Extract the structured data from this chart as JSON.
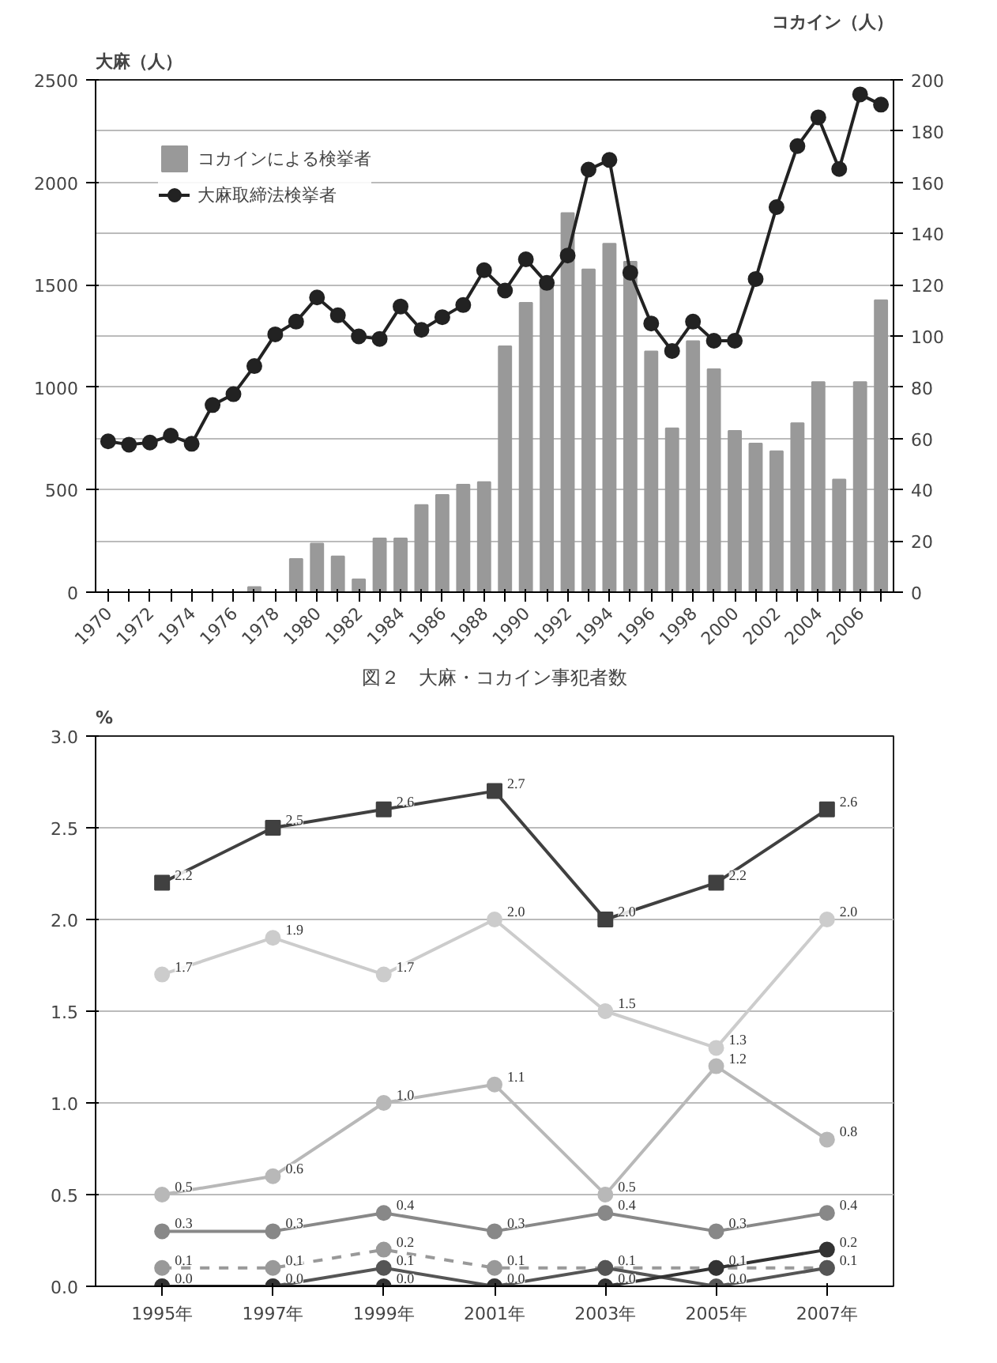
{
  "chart_data": [
    {
      "type": "bar",
      "title": "図２　大麻・コカイン事犯者数",
      "ylabel": "大麻（人）",
      "y2label": "コカイン（人）",
      "categories": [
        "1970",
        null,
        "1972",
        null,
        "1974",
        null,
        "1976",
        null,
        "1978",
        null,
        "1980",
        null,
        "1982",
        null,
        "1984",
        null,
        "1986",
        null,
        "1988",
        null,
        "1990",
        null,
        "1992",
        null,
        "1994",
        null,
        "1996",
        null,
        "1998",
        null,
        "2000",
        null,
        "2002",
        null,
        "2004",
        null,
        "2006",
        null
      ],
      "series": [
        {
          "name": "コカインによる検挙者",
          "type": "bar",
          "axis": "y2",
          "color": "#999999",
          "values": [
            0,
            0,
            0,
            0,
            0,
            0,
            0,
            2,
            0,
            13,
            19,
            14,
            5,
            21,
            21,
            34,
            38,
            42,
            43,
            96,
            113,
            122,
            148,
            126,
            136,
            129,
            94,
            64,
            98,
            87,
            63,
            58,
            55,
            66,
            82,
            44,
            82,
            114
          ]
        },
        {
          "name": "大麻取締法検挙者",
          "type": "line",
          "marker": "circle",
          "color": "#222222",
          "values": [
            736,
            720,
            730,
            764,
            724,
            913,
            966,
            1103,
            1258,
            1320,
            1438,
            1351,
            1248,
            1236,
            1394,
            1280,
            1342,
            1401,
            1571,
            1472,
            1624,
            1509,
            1643,
            2062,
            2109,
            1559,
            1311,
            1177,
            1320,
            1227,
            1227,
            1528,
            1879,
            2177,
            2317,
            2065,
            2429,
            2379
          ]
        }
      ],
      "ylim": [
        0,
        2500
      ],
      "yticks": [
        0,
        500,
        1000,
        1500,
        2000,
        2500
      ],
      "y2lim": [
        0,
        200
      ],
      "y2ticks": [
        0,
        20,
        40,
        60,
        80,
        100,
        120,
        140,
        160,
        180,
        200
      ],
      "grid": "y",
      "legend": "top left"
    },
    {
      "type": "line",
      "ylabel": "%",
      "categories": [
        "1995年",
        "1997年",
        "1999年",
        "2001年",
        "2003年",
        "2005年",
        "2007年"
      ],
      "series": [
        {
          "color": "#404040",
          "marker": "square",
          "line_style": "solid",
          "values": [
            2.2,
            2.5,
            2.6,
            2.7,
            2.0,
            2.2,
            2.6
          ],
          "value_labels": [
            "2.2",
            "2.5",
            "2.6",
            "2.7",
            "2.0",
            "2.2",
            "2.6"
          ]
        },
        {
          "color": "#cccccc",
          "marker": "circle",
          "line_style": "solid",
          "values": [
            1.7,
            1.9,
            1.7,
            2.0,
            1.5,
            1.3,
            2.0
          ],
          "value_labels": [
            "1.7",
            "1.9",
            "1.7",
            "2.0",
            "1.5",
            "1.3",
            "2.0"
          ]
        },
        {
          "color": "#b8b8b8",
          "marker": "circle",
          "line_style": "solid",
          "values": [
            0.5,
            0.6,
            1.0,
            1.1,
            0.5,
            1.2,
            0.8
          ],
          "value_labels": [
            "0.5",
            "0.6",
            "1.0",
            "1.1",
            "0.5",
            "1.2",
            "0.8"
          ]
        },
        {
          "color": "#888888",
          "marker": "circle",
          "line_style": "solid",
          "values": [
            0.3,
            0.3,
            0.4,
            0.3,
            0.4,
            0.3,
            0.4
          ],
          "value_labels": [
            "0.3",
            "0.3",
            "0.4",
            "0.3",
            "0.4",
            "0.3",
            "0.4"
          ]
        },
        {
          "color": "#999999",
          "marker": "circle",
          "line_style": "dashed",
          "values": [
            0.1,
            0.1,
            0.2,
            0.1,
            0.1,
            0.1,
            0.1
          ],
          "value_labels": [
            "0.1",
            "0.1",
            "0.2",
            "0.1",
            "0.1",
            "0.1",
            "0.1"
          ]
        },
        {
          "color": "#555555",
          "marker": "circle",
          "line_style": "solid",
          "values": [
            0.0,
            0.0,
            0.1,
            0.0,
            0.1,
            0.0,
            0.1
          ],
          "value_labels": [
            null,
            null,
            "0.1",
            null,
            null,
            "0.0",
            null
          ]
        },
        {
          "color": "#333333",
          "marker": "circle",
          "line_style": "solid",
          "values": [
            0.0,
            0.0,
            0.0,
            0.0,
            0.0,
            0.1,
            0.2
          ],
          "value_labels": [
            "0.0",
            "0.0",
            "0.0",
            "0.0",
            "0.0",
            null,
            "0.2"
          ]
        }
      ],
      "ylim": [
        0,
        3
      ],
      "yticks": [
        {
          "value": 0,
          "label": "0.0"
        },
        {
          "value": 0.5,
          "label": "0.5"
        },
        {
          "value": 1,
          "label": "1.0"
        },
        {
          "value": 1.5,
          "label": "1.5"
        },
        {
          "value": 2,
          "label": "2.0"
        },
        {
          "value": 2.5,
          "label": "2.5"
        },
        {
          "value": 3,
          "label": "3.0"
        }
      ],
      "grid": "y"
    }
  ]
}
